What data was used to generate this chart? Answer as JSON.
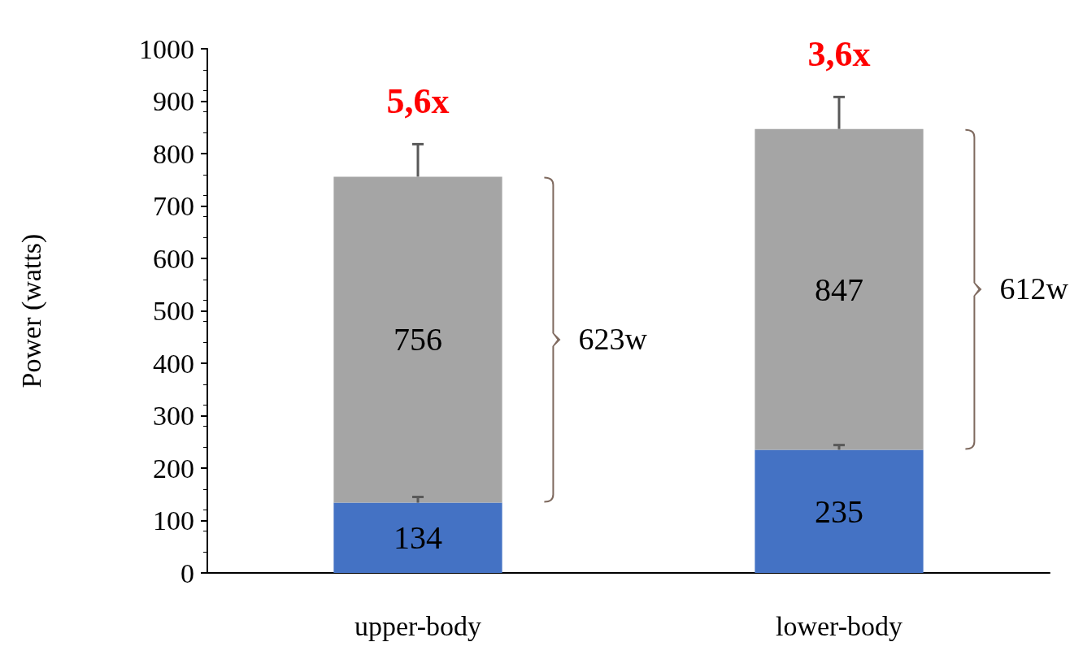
{
  "chart_data": {
    "type": "bar",
    "ylabel": "Power (watts)",
    "categories": [
      "upper-body",
      "lower-body"
    ],
    "stacked": true,
    "series": [
      {
        "color": "#4472c4",
        "values": [
          134,
          235
        ],
        "value_labels": [
          "134",
          "235"
        ],
        "errors": [
          [
            134,
            145
          ],
          [
            235,
            244
          ]
        ]
      },
      {
        "color": "#a5a5a5",
        "values": [
          622,
          612
        ],
        "value_labels": [
          null,
          null
        ],
        "errors": [
          [
            756,
            818
          ],
          [
            847,
            908
          ]
        ]
      }
    ],
    "totals": [
      "756",
      "847"
    ],
    "ylim": [
      0,
      1000
    ],
    "yticks": [
      0,
      100,
      200,
      300,
      400,
      500,
      600,
      700,
      800,
      900,
      1000
    ],
    "grid": false,
    "annotations": [
      "5,6x",
      "3,6x",
      "623w",
      "612w"
    ]
  }
}
